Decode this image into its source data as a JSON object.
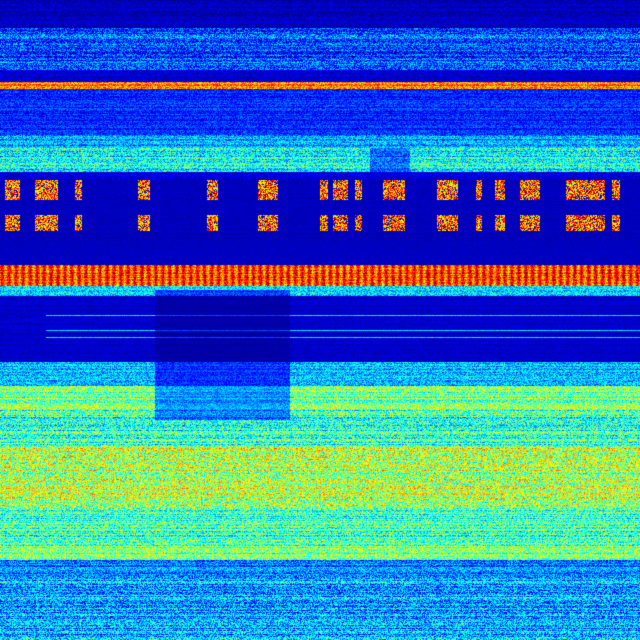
{
  "image": {
    "kind": "spectrogram-waterfall",
    "colormap": "jet",
    "colormap_stops": [
      "#00008f",
      "#0000ff",
      "#00ffff",
      "#ffff00",
      "#ff0000",
      "#800000"
    ]
  }
}
